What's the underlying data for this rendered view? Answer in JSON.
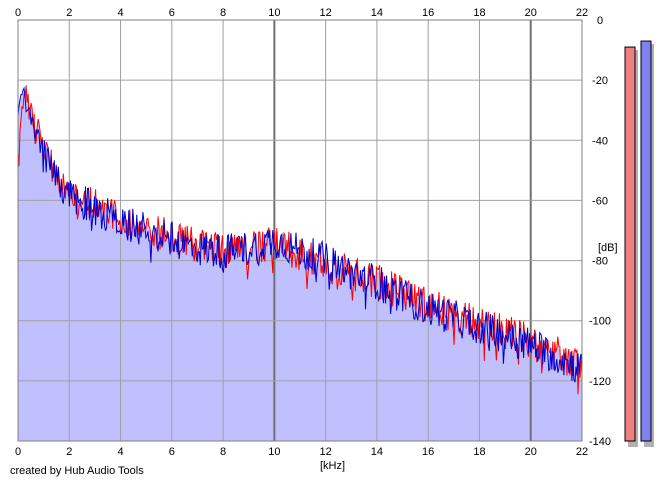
{
  "app": {
    "credit": "created by Hub Audio Tools"
  },
  "chart_data": {
    "type": "area",
    "xlabel": "[kHz]",
    "ylabel": "[dB]",
    "xlim": [
      0,
      22
    ],
    "ylim": [
      -140,
      0
    ],
    "x_ticks": [
      0,
      2,
      4,
      6,
      8,
      10,
      12,
      14,
      16,
      18,
      20,
      22
    ],
    "y_ticks": [
      0,
      -20,
      -40,
      -60,
      -80,
      -100,
      -120,
      -140
    ],
    "grid": true,
    "series": [
      {
        "color": "#ff0000",
        "x": [
          0,
          0.2,
          0.5,
          1,
          1.5,
          2,
          3,
          4,
          5,
          6,
          7,
          8,
          9,
          10,
          11,
          12,
          13,
          14,
          15,
          16,
          17,
          18,
          19,
          20,
          21,
          22
        ],
        "values": [
          -45,
          -22,
          -30,
          -42,
          -52,
          -57,
          -62,
          -66,
          -70,
          -72,
          -75,
          -77,
          -76,
          -74,
          -78,
          -81,
          -84,
          -87,
          -91,
          -95,
          -98,
          -101,
          -104,
          -107,
          -111,
          -115
        ]
      },
      {
        "color": "#0000cc",
        "x": [
          0,
          0.2,
          0.5,
          1,
          1.5,
          2,
          3,
          4,
          5,
          6,
          7,
          8,
          9,
          10,
          11,
          12,
          13,
          14,
          15,
          16,
          17,
          18,
          19,
          20,
          21,
          22
        ],
        "values": [
          -30,
          -22,
          -32,
          -43,
          -53,
          -58,
          -63,
          -67,
          -70,
          -73,
          -76,
          -77,
          -76,
          -73,
          -77,
          -80,
          -84,
          -87,
          -92,
          -96,
          -99,
          -102,
          -105,
          -108,
          -112,
          -116
        ]
      }
    ],
    "fill_color": "#c0c0ff",
    "level_meters": [
      {
        "channel": "L",
        "color": "#f08080",
        "level_db": -9
      },
      {
        "channel": "R",
        "color": "#8080f0",
        "level_db": -7
      }
    ]
  }
}
